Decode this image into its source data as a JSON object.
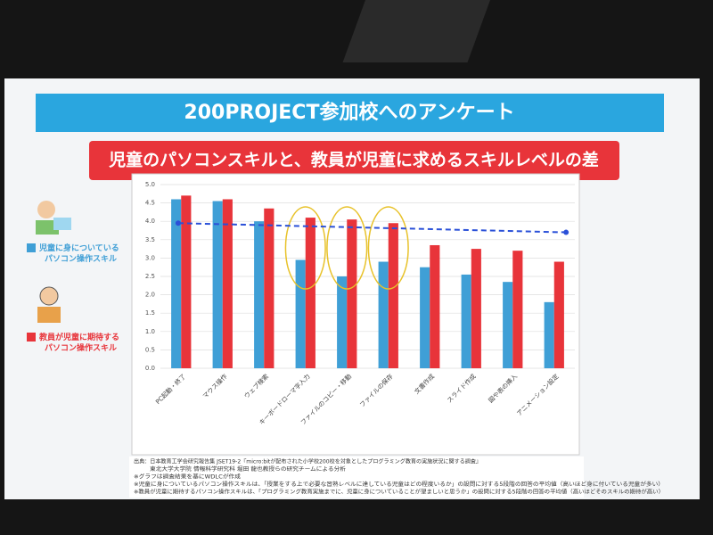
{
  "chart_data": {
    "type": "bar",
    "title": "200PROJECT参加校へのアンケート",
    "subtitle": "児童のパソコンスキルと、教員が児童に求めるスキルレベルの差",
    "categories": [
      "PC起動・終了",
      "マウス操作",
      "ウェブ検索",
      "キーボードローマ字入力",
      "ファイルのコピー・移動",
      "ファイルの保存",
      "文書作成",
      "スライド作成",
      "図や表の挿入",
      "アニメーション設定"
    ],
    "series": [
      {
        "name": "児童に身についている\nパソコン操作スキル",
        "color": "#3f9fd6",
        "values": [
          4.6,
          4.55,
          4.0,
          2.95,
          2.5,
          2.9,
          2.75,
          2.55,
          2.35,
          1.8
        ]
      },
      {
        "name": "教員が児童に期待する\nパソコン操作スキル",
        "color": "#e8343a",
        "values": [
          4.7,
          4.6,
          4.35,
          4.1,
          4.05,
          3.95,
          3.35,
          3.25,
          3.2,
          2.9
        ]
      }
    ],
    "dashed_line": {
      "color": "#2a50d8",
      "values": [
        3.95,
        3.7
      ]
    },
    "highlighted": [
      3,
      4,
      5
    ],
    "ylim": [
      0,
      5
    ],
    "yticks": [
      {
        "value": 0,
        "label": "0.0"
      },
      {
        "value": 0.5,
        "label": "0.5"
      },
      {
        "value": 1,
        "label": "1.0"
      },
      {
        "value": 1.5,
        "label": "1.5"
      },
      {
        "value": 2,
        "label": "2.0"
      },
      {
        "value": 2.5,
        "label": "2.5"
      },
      {
        "value": 3,
        "label": "3.0"
      },
      {
        "value": 3.5,
        "label": "3.5"
      },
      {
        "value": 4,
        "label": "4.0"
      },
      {
        "value": 4.5,
        "label": "4.5"
      },
      {
        "value": 5,
        "label": "5.0"
      }
    ],
    "grid": true,
    "notes": [
      "出典：日本教育工学会研究報告集 JSET19-2『micro:bitが配布された小学校200校を対象としたプログラミング教育の実施状況に関する調査』",
      "東北大学大学院 情報科学研究科 堀田 龍也教授らの研究チームによる分析",
      "※グラフは調査結果を基にWDLCが作成",
      "※児童に身についているパソコン操作スキルは、「授業をする上で必要な習熟レベルに達している児童はどの程度いるか」の設問に対する5段階の回答の平均値（高いほど身に付いている児童が多い）",
      "※教員が児童に期待するパソコン操作スキルは、「プログラミング教育実施までに、児童に身についていることが望ましいと思うか」の設問に対する5段階の回答の平均値（高いほどそのスキルの期待が高い）"
    ]
  }
}
